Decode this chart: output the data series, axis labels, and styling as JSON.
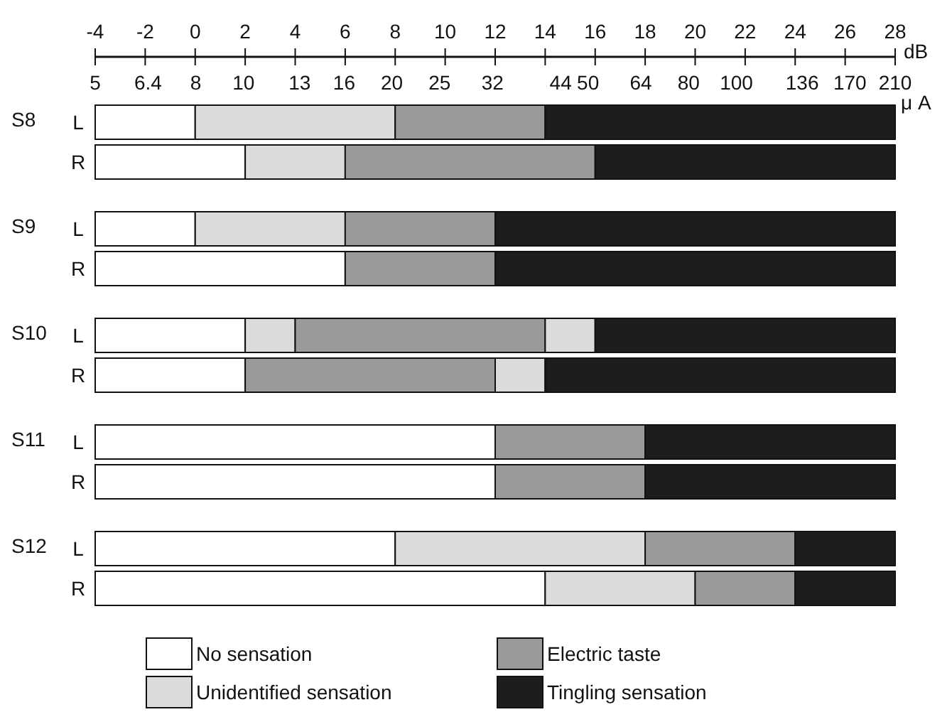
{
  "chart_data": {
    "type": "bar",
    "orientation": "horizontal",
    "categories": [
      "L",
      "R",
      "L",
      "R",
      "L",
      "R",
      "L",
      "R",
      "L",
      "R"
    ],
    "series": [
      {
        "name": "No sensation",
        "color": "#ffffff",
        "base": [
          -4,
          -4,
          -4,
          -4,
          -4,
          -4,
          -4,
          -4,
          -4,
          -4
        ],
        "values": [
          4,
          6,
          4,
          10,
          6,
          6,
          16,
          16,
          12,
          18
        ]
      },
      {
        "name": "Unidentified sensation",
        "color": "#dcdcdc",
        "base": [
          0,
          2,
          0,
          null,
          2,
          null,
          null,
          null,
          8,
          14
        ],
        "values": [
          8,
          4,
          6,
          null,
          2,
          null,
          null,
          null,
          10,
          6
        ]
      },
      {
        "name": "Electric taste",
        "color": "#9a9a9a",
        "base": [
          8,
          6,
          6,
          6,
          4,
          2,
          12,
          12,
          18,
          20
        ],
        "values": [
          6,
          10,
          6,
          6,
          10,
          10,
          6,
          6,
          6,
          4
        ]
      },
      {
        "color": "#dcdcdc",
        "base": [
          null,
          null,
          null,
          null,
          14,
          12,
          null,
          null,
          null,
          null
        ],
        "values": [
          null,
          null,
          null,
          null,
          2,
          2,
          null,
          null,
          null,
          null
        ]
      },
      {
        "name": "Tingling sensation",
        "color": "#1e1c1d",
        "base": [
          14,
          16,
          12,
          12,
          16,
          14,
          18,
          18,
          24,
          24
        ],
        "values": [
          14,
          12,
          16,
          16,
          12,
          14,
          10,
          10,
          4,
          4
        ]
      }
    ],
    "xlabel": "dB",
    "x2label": "μ A",
    "xlim": [
      -4,
      28
    ],
    "xticks": [
      -4,
      -2,
      0,
      2,
      4,
      6,
      8,
      10,
      12,
      14,
      16,
      18,
      20,
      22,
      24,
      26,
      28
    ],
    "x2lim": [
      5,
      210
    ],
    "x2ticks": [
      5,
      6.4,
      8,
      10,
      13,
      16,
      20,
      25,
      32,
      44,
      50,
      64,
      80,
      100,
      136,
      170,
      210
    ],
    "annotations": [
      "S8",
      "S9",
      "S10",
      "S11",
      "S12"
    ],
    "legend": "bottom",
    "log": "x2"
  }
}
